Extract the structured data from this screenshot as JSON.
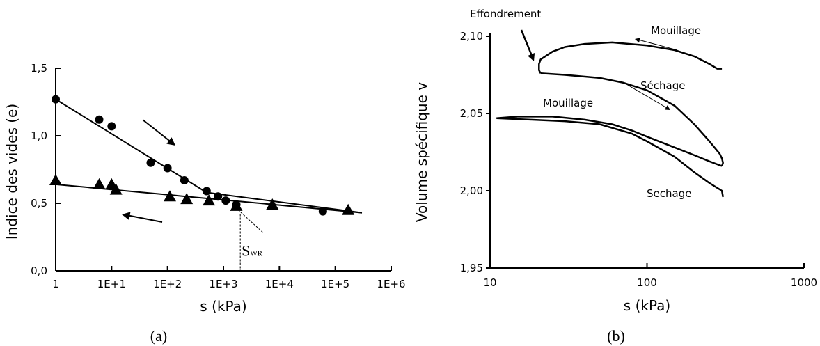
{
  "chart_data": [
    {
      "panel": "(a)",
      "type": "scatter",
      "xlabel": "s (kPa)",
      "ylabel": "Indice des vides (e)",
      "xscale": "log",
      "xlim": [
        1,
        1000000
      ],
      "ylim": [
        0,
        1.5
      ],
      "x_ticks": [
        1,
        10,
        100,
        1000,
        10000,
        100000,
        1000000
      ],
      "x_tick_labels": [
        "1",
        "1E+1",
        "1E+2",
        "1E+3",
        "1E+4",
        "1E+5",
        "1E+6"
      ],
      "y_ticks": [
        0,
        0.5,
        1.0,
        1.5
      ],
      "y_tick_labels": [
        "0,0",
        "0,5",
        "1,0",
        "1,5"
      ],
      "series": [
        {
          "marker": "circle",
          "points": [
            [
              1,
              1.27
            ],
            [
              6,
              1.12
            ],
            [
              10,
              1.07
            ],
            [
              50,
              0.8
            ],
            [
              100,
              0.76
            ],
            [
              200,
              0.67
            ],
            [
              500,
              0.59
            ],
            [
              800,
              0.55
            ],
            [
              1100,
              0.52
            ],
            [
              1700,
              0.49
            ],
            [
              60000,
              0.44
            ]
          ]
        },
        {
          "marker": "triangle",
          "points": [
            [
              1,
              0.67
            ],
            [
              6,
              0.64
            ],
            [
              10,
              0.64
            ],
            [
              12,
              0.6
            ],
            [
              110,
              0.55
            ],
            [
              220,
              0.53
            ],
            [
              550,
              0.52
            ],
            [
              1700,
              0.48
            ],
            [
              7500,
              0.49
            ],
            [
              170000,
              0.45
            ]
          ]
        }
      ],
      "fit_lines": [
        {
          "from": [
            1,
            1.27
          ],
          "to": [
            500,
            0.58
          ]
        },
        {
          "from": [
            500,
            0.58
          ],
          "to": [
            300000,
            0.43
          ]
        },
        {
          "from": [
            1,
            0.64
          ],
          "to": [
            300000,
            0.43
          ]
        }
      ],
      "reference_line_y": 0.42,
      "annotations": {
        "swr_x": 2000,
        "swr_label_main": "S",
        "swr_label_sub": "WR"
      }
    },
    {
      "panel": "(b)",
      "type": "line",
      "xlabel": "s (kPa)",
      "ylabel": "Volume spécifique v",
      "xscale": "log",
      "xlim": [
        10,
        1000
      ],
      "ylim": [
        1.95,
        2.1
      ],
      "x_ticks": [
        10,
        100,
        1000
      ],
      "x_tick_labels": [
        "10",
        "100",
        "1000"
      ],
      "y_ticks": [
        1.95,
        2.0,
        2.05,
        2.1
      ],
      "y_tick_labels": [
        "1,95",
        "2,00",
        "2,05",
        "2,10"
      ],
      "series": [
        {
          "segment": "upper-mouillage",
          "points": [
            [
              300,
              2.079
            ],
            [
              280,
              2.079
            ],
            [
              250,
              2.082
            ],
            [
              200,
              2.087
            ],
            [
              150,
              2.091
            ],
            [
              100,
              2.094
            ],
            [
              60,
              2.096
            ],
            [
              40,
              2.095
            ],
            [
              30,
              2.093
            ],
            [
              25,
              2.09
            ],
            [
              21,
              2.085
            ],
            [
              20.5,
              2.082
            ],
            [
              20.5,
              2.078
            ],
            [
              21,
              2.076
            ]
          ]
        },
        {
          "segment": "upper-sechage",
          "points": [
            [
              21,
              2.076
            ],
            [
              30,
              2.075
            ],
            [
              50,
              2.073
            ],
            [
              70,
              2.07
            ],
            [
              100,
              2.065
            ],
            [
              150,
              2.055
            ],
            [
              200,
              2.043
            ],
            [
              250,
              2.032
            ],
            [
              290,
              2.024
            ],
            [
              300,
              2.021
            ],
            [
              305,
              2.018
            ],
            [
              300,
              2.016
            ]
          ]
        },
        {
          "segment": "lower-mouillage",
          "points": [
            [
              300,
              2.016
            ],
            [
              250,
              2.019
            ],
            [
              200,
              2.023
            ],
            [
              150,
              2.028
            ],
            [
              100,
              2.035
            ],
            [
              80,
              2.039
            ],
            [
              60,
              2.043
            ],
            [
              40,
              2.046
            ],
            [
              25,
              2.048
            ],
            [
              15,
              2.048
            ],
            [
              11,
              2.047
            ]
          ]
        },
        {
          "segment": "lower-sechage",
          "points": [
            [
              11,
              2.047
            ],
            [
              18,
              2.046
            ],
            [
              30,
              2.045
            ],
            [
              50,
              2.043
            ],
            [
              80,
              2.037
            ],
            [
              100,
              2.032
            ],
            [
              150,
              2.022
            ],
            [
              200,
              2.012
            ],
            [
              250,
              2.005
            ],
            [
              300,
              2.0
            ],
            [
              305,
              1.996
            ]
          ]
        }
      ],
      "annotations": {
        "effondrement": "Effondrement",
        "mouillage_top": "Mouillage",
        "sechage_mid": "Séchage",
        "mouillage_mid": "Mouillage",
        "sechage_low": "Sechage"
      }
    }
  ],
  "captions": {
    "a": "(a)",
    "b": "(b)"
  }
}
